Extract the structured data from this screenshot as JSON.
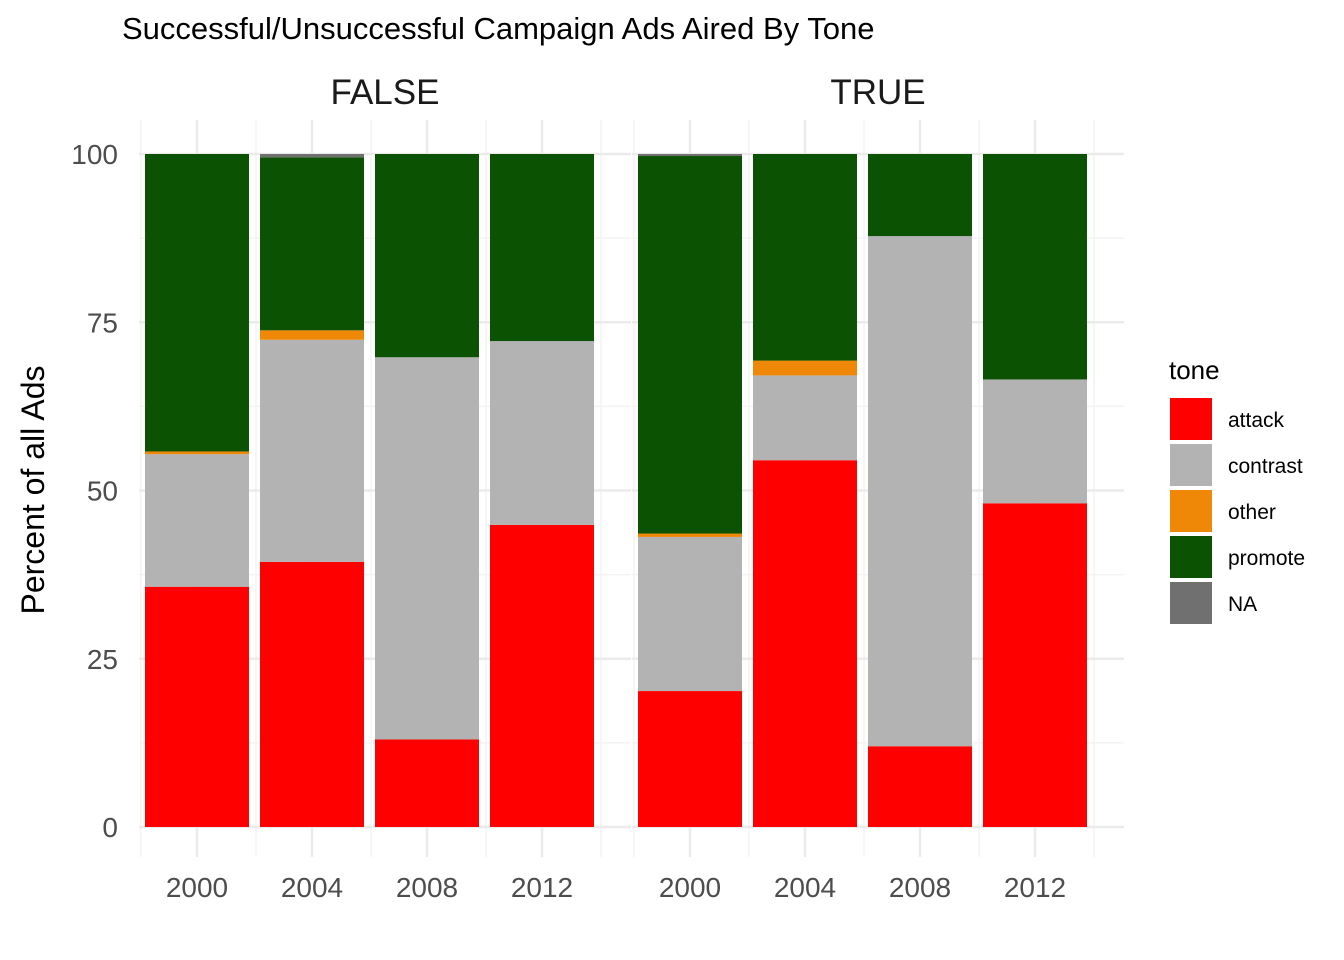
{
  "chart_data": {
    "type": "bar",
    "stacked": true,
    "title": "Successful/Unsuccessful Campaign Ads Aired By Tone",
    "xlabel": "",
    "ylabel": "Percent of all Ads",
    "ylim": [
      0,
      100
    ],
    "yticks": [
      0,
      25,
      50,
      75,
      100
    ],
    "categories": [
      "2000",
      "2004",
      "2008",
      "2012"
    ],
    "legend": {
      "title": "tone",
      "position": "right"
    },
    "series_order": [
      "attack",
      "contrast",
      "other",
      "promote",
      "NA"
    ],
    "colors": {
      "attack": "#FF0000",
      "contrast": "#B3B3B3",
      "other": "#EE8806",
      "promote": "#0B5203",
      "NA": "#707070"
    },
    "grid": true,
    "panels": [
      {
        "label": "FALSE",
        "series": [
          {
            "name": "attack",
            "values": [
              35.7,
              39.4,
              13.0,
              44.9
            ]
          },
          {
            "name": "contrast",
            "values": [
              19.7,
              33.0,
              56.8,
              27.3
            ]
          },
          {
            "name": "other",
            "values": [
              0.4,
              1.4,
              0.0,
              0.0
            ]
          },
          {
            "name": "promote",
            "values": [
              44.2,
              25.7,
              30.2,
              27.8
            ]
          },
          {
            "name": "NA",
            "values": [
              0.0,
              0.5,
              0.0,
              0.0
            ]
          }
        ]
      },
      {
        "label": "TRUE",
        "series": [
          {
            "name": "attack",
            "values": [
              20.2,
              54.5,
              12.0,
              48.1
            ]
          },
          {
            "name": "contrast",
            "values": [
              22.9,
              12.6,
              75.8,
              18.4
            ]
          },
          {
            "name": "other",
            "values": [
              0.5,
              2.2,
              0.0,
              0.0
            ]
          },
          {
            "name": "promote",
            "values": [
              56.1,
              30.7,
              12.2,
              33.5
            ]
          },
          {
            "name": "NA",
            "values": [
              0.3,
              0.0,
              0.0,
              0.0
            ]
          }
        ]
      }
    ]
  }
}
